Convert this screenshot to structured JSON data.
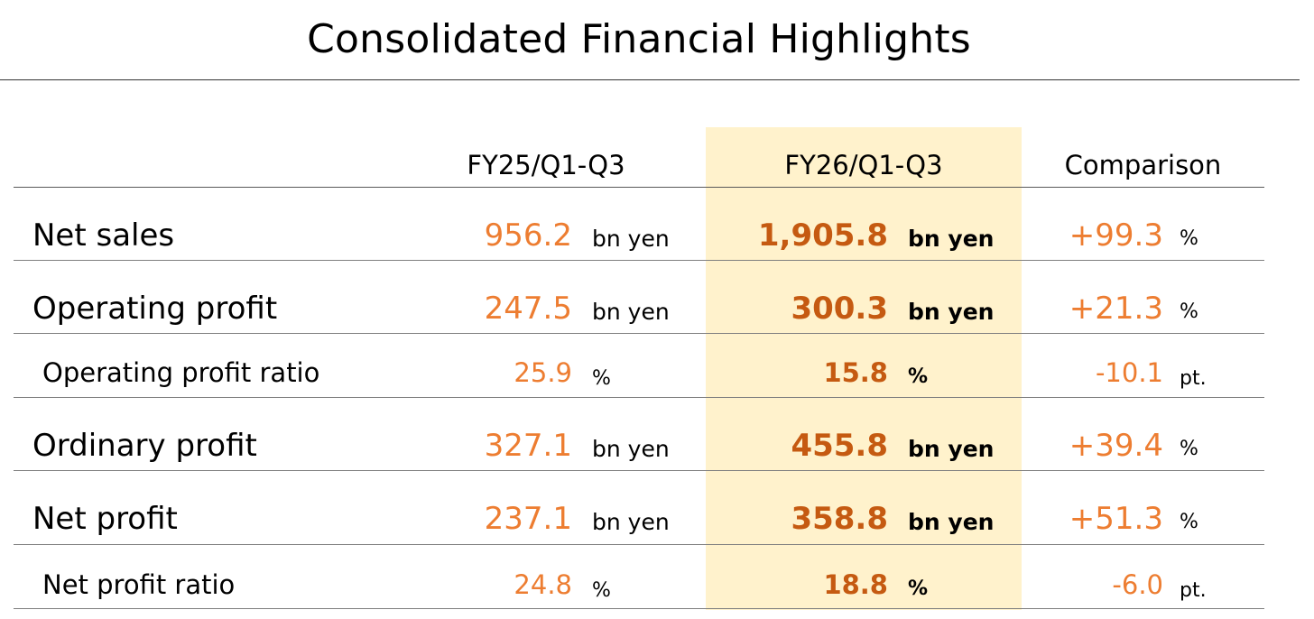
{
  "title": "Consolidated Financial Highlights",
  "columns": {
    "prev": "FY25/Q1-Q3",
    "curr": "FY26/Q1-Q3",
    "comparison": "Comparison"
  },
  "colors": {
    "highlight_bg": "#fff2cc",
    "prev_value": "#ed7d31",
    "curr_value": "#c55a11",
    "rule": "#7f7f7f"
  },
  "rows": [
    {
      "label": "Net sales",
      "prev_value": "956.2",
      "prev_unit": "bn yen",
      "curr_value": "1,905.8",
      "curr_unit": "bn yen",
      "cmp_value": "+99.3",
      "cmp_unit": "%"
    },
    {
      "label": "Operating profit",
      "prev_value": "247.5",
      "prev_unit": "bn yen",
      "curr_value": "300.3",
      "curr_unit": "bn yen",
      "cmp_value": "+21.3",
      "cmp_unit": "%"
    },
    {
      "label": "Operating profit ratio",
      "prev_value": "25.9",
      "prev_unit": "%",
      "curr_value": "15.8",
      "curr_unit": "%",
      "cmp_value": "-10.1",
      "cmp_unit": "pt."
    },
    {
      "label": "Ordinary profit",
      "prev_value": "327.1",
      "prev_unit": "bn yen",
      "curr_value": "455.8",
      "curr_unit": "bn yen",
      "cmp_value": "+39.4",
      "cmp_unit": "%"
    },
    {
      "label": "Net profit",
      "prev_value": "237.1",
      "prev_unit": "bn yen",
      "curr_value": "358.8",
      "curr_unit": "bn yen",
      "cmp_value": "+51.3",
      "cmp_unit": "%"
    },
    {
      "label": "Net profit ratio",
      "prev_value": "24.8",
      "prev_unit": "%",
      "curr_value": "18.8",
      "curr_unit": "%",
      "cmp_value": "-6.0",
      "cmp_unit": "pt."
    }
  ]
}
